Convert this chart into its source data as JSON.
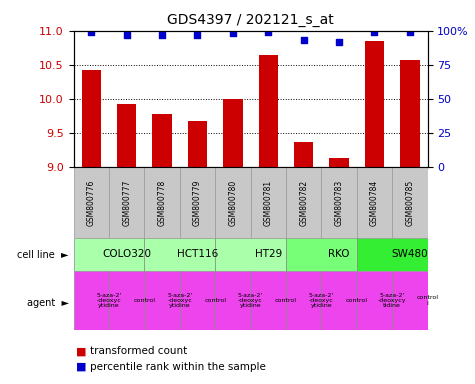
{
  "title": "GDS4397 / 202121_s_at",
  "samples": [
    "GSM800776",
    "GSM800777",
    "GSM800778",
    "GSM800779",
    "GSM800780",
    "GSM800781",
    "GSM800782",
    "GSM800783",
    "GSM800784",
    "GSM800785"
  ],
  "bar_values": [
    10.43,
    9.93,
    9.78,
    9.67,
    10.0,
    10.65,
    9.37,
    9.13,
    10.85,
    10.57
  ],
  "percentile_values": [
    99,
    97,
    97,
    97,
    98,
    99,
    93,
    92,
    99,
    99
  ],
  "bar_color": "#cc0000",
  "percentile_color": "#0000cc",
  "ylim_left": [
    9.0,
    11.0
  ],
  "ylim_right": [
    0,
    100
  ],
  "yticks_left": [
    9.0,
    9.5,
    10.0,
    10.5,
    11.0
  ],
  "yticks_right": [
    0,
    25,
    50,
    75,
    100
  ],
  "cell_lines": [
    {
      "label": "COLO320",
      "start": 0,
      "end": 2,
      "color": "#aaffaa"
    },
    {
      "label": "HCT116",
      "start": 2,
      "end": 4,
      "color": "#aaffaa"
    },
    {
      "label": "HT29",
      "start": 4,
      "end": 6,
      "color": "#aaffaa"
    },
    {
      "label": "RKO",
      "start": 6,
      "end": 8,
      "color": "#77ff77"
    },
    {
      "label": "SW480",
      "start": 8,
      "end": 10,
      "color": "#33ee33"
    }
  ],
  "agents": [
    {
      "label": "5-aza-2'\n-deoxyc\nytidine",
      "start": 0,
      "end": 1,
      "color": "#ee44ee"
    },
    {
      "label": "control",
      "start": 1,
      "end": 2,
      "color": "#ee44ee"
    },
    {
      "label": "5-aza-2'\n-deoxyc\nytidine",
      "start": 2,
      "end": 3,
      "color": "#ee44ee"
    },
    {
      "label": "control",
      "start": 3,
      "end": 4,
      "color": "#ee44ee"
    },
    {
      "label": "5-aza-2'\n-deoxyc\nytidine",
      "start": 4,
      "end": 5,
      "color": "#ee44ee"
    },
    {
      "label": "control",
      "start": 5,
      "end": 6,
      "color": "#ee44ee"
    },
    {
      "label": "5-aza-2'\n-deoxyc\nytidine",
      "start": 6,
      "end": 7,
      "color": "#ee44ee"
    },
    {
      "label": "control",
      "start": 7,
      "end": 8,
      "color": "#ee44ee"
    },
    {
      "label": "5-aza-2'\n-deoxycy\ntidine",
      "start": 8,
      "end": 9,
      "color": "#ee44ee"
    },
    {
      "label": "control\nl",
      "start": 9,
      "end": 10,
      "color": "#ee44ee"
    }
  ],
  "legend_red": "transformed count",
  "legend_blue": "percentile rank within the sample",
  "cell_line_label": "cell line",
  "agent_label": "agent",
  "bar_width": 0.55,
  "bar_bottom": 9.0,
  "sample_bg": "#c8c8c8",
  "sample_edge": "#999999"
}
